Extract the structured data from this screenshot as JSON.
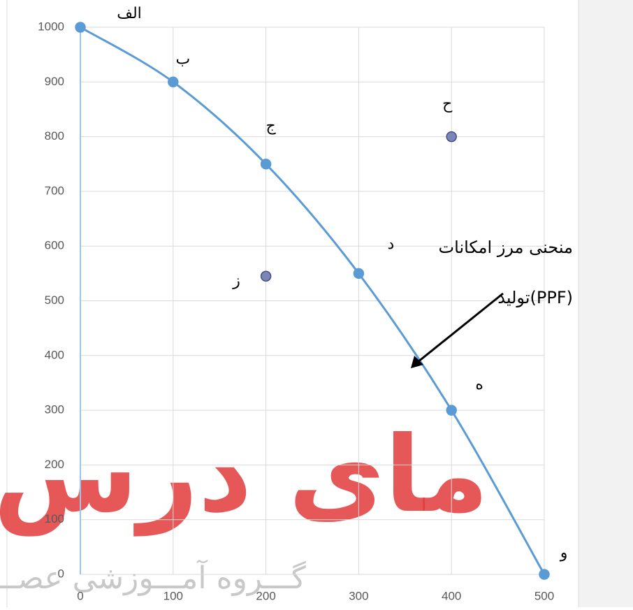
{
  "chart_data": {
    "type": "line",
    "series": [
      {
        "color": "#5b9bd5",
        "x": [
          0,
          100,
          200,
          300,
          400,
          500
        ],
        "values": [
          1000,
          900,
          750,
          550,
          300,
          0
        ],
        "point_labels": [
          "الف",
          "ب",
          "ج",
          "د",
          "ه",
          "و"
        ],
        "smooth": true
      },
      {
        "color": "#7a86b8",
        "x": [
          400,
          200
        ],
        "values": [
          800,
          545
        ],
        "point_labels": [
          "ح",
          "ز"
        ],
        "markers_only": true
      }
    ],
    "xlim": [
      0,
      500
    ],
    "xticks": [
      0,
      100,
      200,
      300,
      400,
      500
    ],
    "ylim": [
      0,
      1000
    ],
    "yticks": [
      0,
      100,
      200,
      300,
      400,
      500,
      600,
      700,
      800,
      900,
      1000
    ],
    "grid": true,
    "annotation": [
      "منحنی مرز امکانات",
      "تولید(PPF)"
    ],
    "watermark": [
      "مای درس",
      "گـــروه آمـــوزشی عصـــر"
    ]
  }
}
